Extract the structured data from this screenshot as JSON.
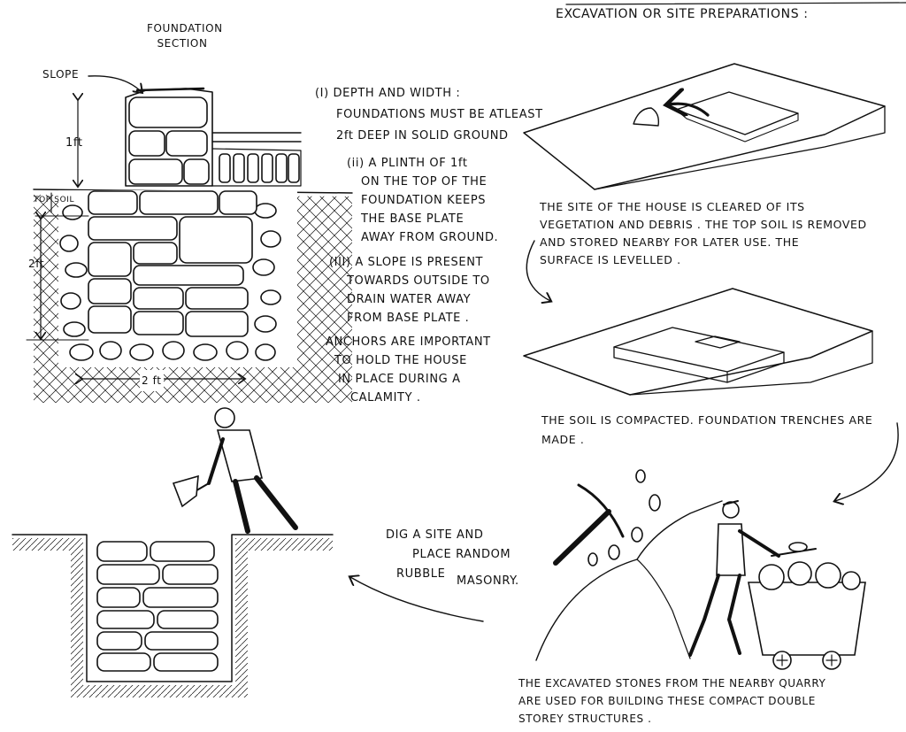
{
  "header": {
    "title": "EXCAVATION OR SITE PREPARATIONS :"
  },
  "foundation_section": {
    "title_line1": "FOUNDATION",
    "title_line2": "SECTION",
    "slope_label": "SLOPE",
    "plinth_height_label": "1ft",
    "top_soil_label": "TOP SOIL",
    "depth_label": "2ft",
    "width_label": "2 ft"
  },
  "notes": {
    "depth_width": [
      "(i) DEPTH AND WIDTH :",
      "FOUNDATIONS MUST BE ATLEAST",
      "2ft DEEP IN SOLID GROUND"
    ],
    "plinth": [
      "(ii) A PLINTH OF 1ft",
      "ON THE TOP OF THE",
      "FOUNDATION KEEPS",
      "THE BASE PLATE",
      "AWAY FROM GROUND."
    ],
    "slope": [
      "(iii) A SLOPE IS PRESENT",
      "TOWARDS OUTSIDE TO",
      "DRAIN WATER AWAY",
      "FROM BASE PLATE ."
    ],
    "anchors": [
      "ANCHORS ARE IMPORTANT",
      "TO HOLD THE HOUSE",
      "IN PLACE DURING A",
      "CALAMITY ."
    ]
  },
  "steps": {
    "site_cleared": [
      "THE SITE OF THE HOUSE IS CLEARED OF ITS",
      "VEGETATION AND DEBRIS . THE TOP SOIL IS REMOVED",
      "AND STORED NEARBY FOR LATER USE. THE",
      "SURFACE IS LEVELLED ."
    ],
    "soil_compacted": [
      "THE SOIL IS COMPACTED. FOUNDATION TRENCHES ARE",
      "MADE ."
    ],
    "quarry": [
      "THE EXCAVATED STONES FROM THE NEARBY QUARRY",
      "ARE USED FOR BUILDING THESE COMPACT DOUBLE",
      "STOREY STRUCTURES ."
    ],
    "dig_site": [
      "DIG A SITE AND",
      "PLACE RANDOM",
      "RUBBLE",
      "MASONRY."
    ]
  },
  "colors": {
    "ink": "#111111",
    "paper": "#ffffff"
  }
}
